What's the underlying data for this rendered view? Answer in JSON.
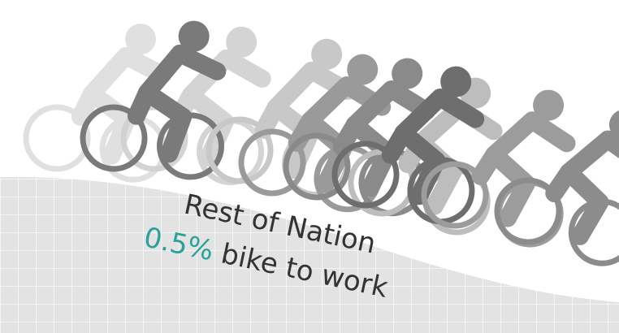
{
  "headline": "Rest of Nation",
  "stat": "0.5%",
  "caption": "bike to work"
}
